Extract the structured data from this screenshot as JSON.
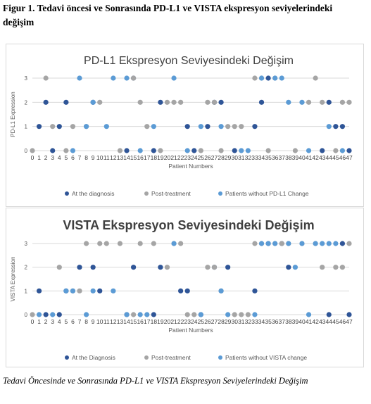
{
  "figure_title": "Figur 1. Tedavi öncesi ve Sonrasında PD-L1 ve VISTA ekspresyon seviyelerindeki değişim",
  "caption": "Tedavi Öncesinde ve Sonrasında PD-L1 ve VISTA Ekspresyon Seviyelerindeki Değişim",
  "colors": {
    "diagnosis": "#2f5597",
    "post": "#a5a5a5",
    "nochange": "#5b9bd5",
    "grid": "#d9d9d9",
    "text": "#595959"
  },
  "chart_data": [
    {
      "type": "scatter",
      "title": "PD-L1 Ekspresyon Seviyesindeki Değişim",
      "xlabel": "Patient Numbers",
      "ylabel": "PD-L1 Expression",
      "xlim": [
        0,
        47
      ],
      "ylim": [
        0,
        3
      ],
      "x_ticks": [
        0,
        1,
        2,
        3,
        4,
        5,
        6,
        7,
        8,
        9,
        10,
        11,
        12,
        13,
        14,
        15,
        16,
        17,
        18,
        19,
        20,
        21,
        22,
        23,
        24,
        25,
        26,
        27,
        28,
        29,
        30,
        31,
        32,
        33,
        34,
        35,
        36,
        37,
        38,
        39,
        40,
        41,
        42,
        43,
        44,
        45,
        46,
        47
      ],
      "y_ticks": [
        0,
        1,
        2,
        3
      ],
      "grid": true,
      "legend_position": "bottom",
      "series": [
        {
          "name": "At the diagnosis",
          "color": "#2f5597",
          "points": [
            [
              1,
              1
            ],
            [
              2,
              2
            ],
            [
              3,
              0
            ],
            [
              4,
              1
            ],
            [
              5,
              2
            ],
            [
              9,
              2
            ],
            [
              14,
              0
            ],
            [
              15,
              3
            ],
            [
              18,
              0
            ],
            [
              19,
              2
            ],
            [
              23,
              1
            ],
            [
              24,
              0
            ],
            [
              26,
              1
            ],
            [
              27,
              2
            ],
            [
              28,
              2
            ],
            [
              30,
              0
            ],
            [
              33,
              1
            ],
            [
              34,
              2
            ],
            [
              35,
              3
            ],
            [
              43,
              0
            ],
            [
              44,
              2
            ],
            [
              45,
              1
            ],
            [
              46,
              1
            ],
            [
              47,
              0
            ]
          ]
        },
        {
          "name": "Post-treatment",
          "color": "#a5a5a5",
          "points": [
            [
              0,
              0
            ],
            [
              2,
              3
            ],
            [
              3,
              1
            ],
            [
              5,
              0
            ],
            [
              6,
              1
            ],
            [
              8,
              1
            ],
            [
              10,
              2
            ],
            [
              13,
              0
            ],
            [
              15,
              3
            ],
            [
              16,
              2
            ],
            [
              17,
              1
            ],
            [
              19,
              0
            ],
            [
              20,
              2
            ],
            [
              21,
              2
            ],
            [
              22,
              2
            ],
            [
              25,
              0
            ],
            [
              26,
              2
            ],
            [
              27,
              2
            ],
            [
              28,
              0
            ],
            [
              29,
              1
            ],
            [
              30,
              1
            ],
            [
              31,
              1
            ],
            [
              33,
              3
            ],
            [
              34,
              3
            ],
            [
              35,
              0
            ],
            [
              36,
              3
            ],
            [
              39,
              0
            ],
            [
              41,
              2
            ],
            [
              42,
              3
            ],
            [
              43,
              2
            ],
            [
              45,
              0
            ],
            [
              46,
              2
            ],
            [
              47,
              2
            ]
          ]
        },
        {
          "name": "Patients without PD-L1 Change",
          "color": "#5b9bd5",
          "points": [
            [
              6,
              0
            ],
            [
              7,
              3
            ],
            [
              8,
              1
            ],
            [
              9,
              2
            ],
            [
              11,
              1
            ],
            [
              12,
              3
            ],
            [
              14,
              3
            ],
            [
              16,
              0
            ],
            [
              18,
              1
            ],
            [
              21,
              3
            ],
            [
              23,
              0
            ],
            [
              25,
              1
            ],
            [
              28,
              1
            ],
            [
              31,
              0
            ],
            [
              32,
              0
            ],
            [
              34,
              3
            ],
            [
              36,
              3
            ],
            [
              37,
              3
            ],
            [
              38,
              2
            ],
            [
              40,
              2
            ],
            [
              41,
              0
            ],
            [
              44,
              1
            ],
            [
              46,
              0
            ]
          ]
        }
      ]
    },
    {
      "type": "scatter",
      "title": "VISTA Ekspresyon Seviyesindeki Değişim",
      "xlabel": "Patient Numbers",
      "ylabel": "VISTA Expression",
      "xlim": [
        0,
        47
      ],
      "ylim": [
        0,
        3
      ],
      "x_ticks": [
        0,
        1,
        2,
        3,
        4,
        5,
        6,
        7,
        8,
        9,
        10,
        11,
        12,
        13,
        14,
        15,
        16,
        17,
        18,
        19,
        20,
        21,
        22,
        23,
        24,
        25,
        26,
        27,
        28,
        29,
        30,
        31,
        32,
        33,
        34,
        35,
        36,
        37,
        38,
        39,
        40,
        41,
        42,
        43,
        44,
        45,
        46,
        47
      ],
      "y_ticks": [
        0,
        1,
        2,
        3
      ],
      "grid": true,
      "legend_position": "bottom",
      "series": [
        {
          "name": "At the Diagnosis",
          "color": "#2f5597",
          "points": [
            [
              1,
              1
            ],
            [
              2,
              0
            ],
            [
              4,
              0
            ],
            [
              5,
              1
            ],
            [
              7,
              2
            ],
            [
              9,
              2
            ],
            [
              10,
              1
            ],
            [
              14,
              0
            ],
            [
              15,
              2
            ],
            [
              18,
              0
            ],
            [
              19,
              2
            ],
            [
              22,
              1
            ],
            [
              23,
              1
            ],
            [
              25,
              0
            ],
            [
              27,
              2
            ],
            [
              29,
              2
            ],
            [
              33,
              1
            ],
            [
              35,
              3
            ],
            [
              37,
              3
            ],
            [
              38,
              2
            ],
            [
              44,
              0
            ],
            [
              46,
              3
            ],
            [
              47,
              0
            ]
          ]
        },
        {
          "name": "Post-treatment",
          "color": "#a5a5a5",
          "points": [
            [
              0,
              0
            ],
            [
              4,
              2
            ],
            [
              6,
              1
            ],
            [
              7,
              1
            ],
            [
              8,
              3
            ],
            [
              10,
              3
            ],
            [
              11,
              3
            ],
            [
              13,
              3
            ],
            [
              15,
              0
            ],
            [
              16,
              3
            ],
            [
              18,
              3
            ],
            [
              20,
              2
            ],
            [
              21,
              3
            ],
            [
              22,
              3
            ],
            [
              23,
              0
            ],
            [
              24,
              0
            ],
            [
              26,
              2
            ],
            [
              27,
              2
            ],
            [
              28,
              1
            ],
            [
              30,
              0
            ],
            [
              31,
              0
            ],
            [
              32,
              0
            ],
            [
              33,
              3
            ],
            [
              34,
              3
            ],
            [
              36,
              3
            ],
            [
              37,
              3
            ],
            [
              38,
              3
            ],
            [
              40,
              3
            ],
            [
              42,
              3
            ],
            [
              43,
              2
            ],
            [
              45,
              2
            ],
            [
              46,
              2
            ],
            [
              47,
              3
            ]
          ]
        },
        {
          "name": "Patients without VISTA change",
          "color": "#5b9bd5",
          "points": [
            [
              1,
              0
            ],
            [
              3,
              0
            ],
            [
              5,
              1
            ],
            [
              6,
              1
            ],
            [
              8,
              0
            ],
            [
              9,
              1
            ],
            [
              12,
              1
            ],
            [
              14,
              0
            ],
            [
              16,
              0
            ],
            [
              17,
              0
            ],
            [
              21,
              3
            ],
            [
              25,
              0
            ],
            [
              28,
              1
            ],
            [
              29,
              0
            ],
            [
              33,
              0
            ],
            [
              34,
              3
            ],
            [
              35,
              3
            ],
            [
              36,
              3
            ],
            [
              38,
              3
            ],
            [
              39,
              2
            ],
            [
              40,
              3
            ],
            [
              41,
              0
            ],
            [
              42,
              3
            ],
            [
              43,
              3
            ],
            [
              44,
              3
            ],
            [
              45,
              3
            ]
          ]
        }
      ]
    }
  ]
}
